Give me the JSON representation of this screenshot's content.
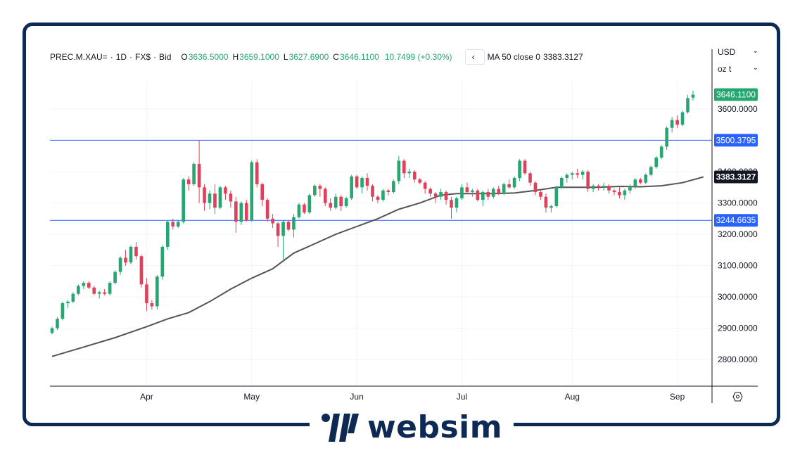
{
  "legend": {
    "symbol": "PREC.M.XAU=",
    "interval": "1D",
    "source": "FX$",
    "side": "Bid",
    "open_key": "O",
    "open": "3636.5000",
    "high_key": "H",
    "high": "3659.1000",
    "low_key": "L",
    "low": "3627.6900",
    "close_key": "C",
    "close": "3646.1100",
    "change": "10.7499 (+0.30%)",
    "nav_icon": "chevron-left-icon",
    "ma_label": "MA 50 close 0",
    "ma_value": "3383.3127"
  },
  "selectors": {
    "currency": "USD",
    "unit": "oz t"
  },
  "colors": {
    "up": "#26a671",
    "down": "#e0415a",
    "ma": "#555555",
    "level": "#2962ff",
    "brand": "#0d2a55"
  },
  "brand": {
    "name": "websim"
  },
  "chart_data": {
    "type": "candlestick",
    "title": "",
    "ylim": [
      2715,
      3690
    ],
    "y_ticks": [
      "2800.0000",
      "2900.0000",
      "3000.0000",
      "3100.0000",
      "3200.0000",
      "3300.0000",
      "3400.0000",
      "3500.0000",
      "3600.0000"
    ],
    "x_labels": [
      {
        "label": "Apr",
        "index": 18
      },
      {
        "label": "May",
        "index": 38
      },
      {
        "label": "Jun",
        "index": 58
      },
      {
        "label": "Jul",
        "index": 78
      },
      {
        "label": "Aug",
        "index": 99
      },
      {
        "label": "Sep",
        "index": 119
      }
    ],
    "horizontal_lines": [
      3500.3795,
      3244.6635
    ],
    "price_labels": [
      {
        "text": "3646.1100",
        "value": 3646.11,
        "kind": "up"
      },
      {
        "text": "3500.3795",
        "value": 3500.3795,
        "kind": "level"
      },
      {
        "text": "3383.3127",
        "value": 3383.3127,
        "kind": "ma"
      },
      {
        "text": "3244.6635",
        "value": 3244.6635,
        "kind": "level"
      }
    ],
    "candles": [
      [
        2885,
        2905,
        2880,
        2900
      ],
      [
        2900,
        2935,
        2895,
        2930
      ],
      [
        2930,
        2985,
        2925,
        2980
      ],
      [
        2980,
        2990,
        2965,
        2985
      ],
      [
        2985,
        3015,
        2980,
        3010
      ],
      [
        3010,
        3040,
        3005,
        3035
      ],
      [
        3035,
        3050,
        3025,
        3045
      ],
      [
        3045,
        3050,
        3025,
        3030
      ],
      [
        3030,
        3035,
        3005,
        3010
      ],
      [
        3010,
        3020,
        2995,
        3015
      ],
      [
        3015,
        3025,
        3005,
        3010
      ],
      [
        3010,
        3050,
        3005,
        3045
      ],
      [
        3045,
        3085,
        3040,
        3080
      ],
      [
        3080,
        3130,
        3070,
        3125
      ],
      [
        3125,
        3150,
        3100,
        3110
      ],
      [
        3110,
        3165,
        3105,
        3160
      ],
      [
        3160,
        3175,
        3120,
        3130
      ],
      [
        3130,
        3135,
        3030,
        3040
      ],
      [
        3040,
        3060,
        2955,
        2980
      ],
      [
        2980,
        2990,
        2960,
        2970
      ],
      [
        2970,
        3070,
        2960,
        3065
      ],
      [
        3065,
        3165,
        3055,
        3160
      ],
      [
        3160,
        3245,
        3150,
        3240
      ],
      [
        3240,
        3250,
        3215,
        3225
      ],
      [
        3225,
        3245,
        3220,
        3240
      ],
      [
        3240,
        3380,
        3235,
        3375
      ],
      [
        3375,
        3385,
        3340,
        3360
      ],
      [
        3360,
        3430,
        3355,
        3425
      ],
      [
        3425,
        3500,
        3300,
        3350
      ],
      [
        3350,
        3360,
        3275,
        3300
      ],
      [
        3300,
        3340,
        3280,
        3330
      ],
      [
        3330,
        3360,
        3265,
        3285
      ],
      [
        3285,
        3355,
        3280,
        3350
      ],
      [
        3350,
        3355,
        3310,
        3330
      ],
      [
        3330,
        3340,
        3285,
        3305
      ],
      [
        3305,
        3320,
        3205,
        3240
      ],
      [
        3240,
        3305,
        3230,
        3300
      ],
      [
        3300,
        3310,
        3240,
        3245
      ],
      [
        3245,
        3435,
        3240,
        3430
      ],
      [
        3430,
        3440,
        3350,
        3360
      ],
      [
        3360,
        3365,
        3290,
        3310
      ],
      [
        3310,
        3315,
        3240,
        3250
      ],
      [
        3250,
        3265,
        3220,
        3235
      ],
      [
        3235,
        3240,
        3160,
        3195
      ],
      [
        3195,
        3245,
        3120,
        3240
      ],
      [
        3240,
        3245,
        3210,
        3215
      ],
      [
        3215,
        3265,
        3190,
        3255
      ],
      [
        3255,
        3300,
        3250,
        3295
      ],
      [
        3295,
        3300,
        3265,
        3270
      ],
      [
        3270,
        3330,
        3265,
        3325
      ],
      [
        3325,
        3360,
        3320,
        3355
      ],
      [
        3355,
        3360,
        3320,
        3345
      ],
      [
        3345,
        3350,
        3290,
        3300
      ],
      [
        3300,
        3315,
        3275,
        3285
      ],
      [
        3285,
        3330,
        3280,
        3320
      ],
      [
        3320,
        3325,
        3275,
        3290
      ],
      [
        3290,
        3320,
        3285,
        3315
      ],
      [
        3315,
        3390,
        3310,
        3385
      ],
      [
        3385,
        3390,
        3345,
        3350
      ],
      [
        3350,
        3385,
        3330,
        3380
      ],
      [
        3380,
        3395,
        3340,
        3355
      ],
      [
        3355,
        3360,
        3305,
        3320
      ],
      [
        3320,
        3325,
        3300,
        3310
      ],
      [
        3310,
        3345,
        3305,
        3340
      ],
      [
        3340,
        3345,
        3325,
        3335
      ],
      [
        3335,
        3375,
        3330,
        3370
      ],
      [
        3370,
        3450,
        3360,
        3435
      ],
      [
        3435,
        3440,
        3380,
        3395
      ],
      [
        3395,
        3410,
        3380,
        3400
      ],
      [
        3400,
        3405,
        3365,
        3375
      ],
      [
        3375,
        3380,
        3360,
        3365
      ],
      [
        3365,
        3370,
        3330,
        3345
      ],
      [
        3345,
        3350,
        3320,
        3330
      ],
      [
        3330,
        3335,
        3300,
        3320
      ],
      [
        3320,
        3345,
        3310,
        3335
      ],
      [
        3335,
        3340,
        3295,
        3310
      ],
      [
        3310,
        3320,
        3250,
        3285
      ],
      [
        3285,
        3320,
        3270,
        3315
      ],
      [
        3315,
        3360,
        3310,
        3350
      ],
      [
        3350,
        3365,
        3330,
        3335
      ],
      [
        3335,
        3345,
        3320,
        3340
      ],
      [
        3340,
        3345,
        3305,
        3310
      ],
      [
        3310,
        3340,
        3290,
        3335
      ],
      [
        3335,
        3345,
        3310,
        3320
      ],
      [
        3320,
        3350,
        3315,
        3345
      ],
      [
        3345,
        3355,
        3325,
        3330
      ],
      [
        3330,
        3365,
        3325,
        3360
      ],
      [
        3360,
        3375,
        3345,
        3350
      ],
      [
        3350,
        3385,
        3345,
        3380
      ],
      [
        3380,
        3440,
        3370,
        3435
      ],
      [
        3435,
        3440,
        3390,
        3395
      ],
      [
        3395,
        3400,
        3355,
        3365
      ],
      [
        3365,
        3370,
        3325,
        3335
      ],
      [
        3335,
        3340,
        3310,
        3320
      ],
      [
        3320,
        3330,
        3270,
        3285
      ],
      [
        3285,
        3295,
        3270,
        3290
      ],
      [
        3290,
        3355,
        3285,
        3350
      ],
      [
        3350,
        3385,
        3345,
        3380
      ],
      [
        3380,
        3395,
        3365,
        3390
      ],
      [
        3390,
        3400,
        3375,
        3395
      ],
      [
        3395,
        3410,
        3380,
        3390
      ],
      [
        3390,
        3405,
        3375,
        3400
      ],
      [
        3400,
        3405,
        3335,
        3345
      ],
      [
        3345,
        3360,
        3335,
        3355
      ],
      [
        3355,
        3360,
        3340,
        3350
      ],
      [
        3350,
        3365,
        3340,
        3355
      ],
      [
        3355,
        3360,
        3330,
        3340
      ],
      [
        3340,
        3345,
        3325,
        3335
      ],
      [
        3335,
        3350,
        3315,
        3325
      ],
      [
        3325,
        3345,
        3310,
        3340
      ],
      [
        3340,
        3360,
        3330,
        3355
      ],
      [
        3355,
        3380,
        3345,
        3375
      ],
      [
        3375,
        3380,
        3360,
        3365
      ],
      [
        3365,
        3395,
        3360,
        3390
      ],
      [
        3390,
        3420,
        3385,
        3415
      ],
      [
        3415,
        3450,
        3410,
        3445
      ],
      [
        3445,
        3485,
        3440,
        3480
      ],
      [
        3480,
        3545,
        3470,
        3540
      ],
      [
        3540,
        3575,
        3525,
        3565
      ],
      [
        3565,
        3580,
        3540,
        3550
      ],
      [
        3550,
        3595,
        3545,
        3590
      ],
      [
        3590,
        3645,
        3585,
        3635
      ],
      [
        3636.5,
        3659.1,
        3627.69,
        3646.11
      ]
    ],
    "ma50": [
      [
        0,
        2810
      ],
      [
        6,
        2840
      ],
      [
        12,
        2870
      ],
      [
        18,
        2905
      ],
      [
        22,
        2930
      ],
      [
        26,
        2950
      ],
      [
        30,
        2985
      ],
      [
        34,
        3025
      ],
      [
        38,
        3060
      ],
      [
        42,
        3090
      ],
      [
        46,
        3140
      ],
      [
        50,
        3170
      ],
      [
        54,
        3200
      ],
      [
        58,
        3225
      ],
      [
        62,
        3250
      ],
      [
        66,
        3280
      ],
      [
        70,
        3300
      ],
      [
        74,
        3325
      ],
      [
        77,
        3330
      ],
      [
        80,
        3330
      ],
      [
        84,
        3330
      ],
      [
        88,
        3332
      ],
      [
        92,
        3340
      ],
      [
        96,
        3350
      ],
      [
        100,
        3350
      ],
      [
        104,
        3350
      ],
      [
        108,
        3353
      ],
      [
        112,
        3352
      ],
      [
        116,
        3355
      ],
      [
        120,
        3365
      ],
      [
        124,
        3383.3127
      ]
    ]
  }
}
